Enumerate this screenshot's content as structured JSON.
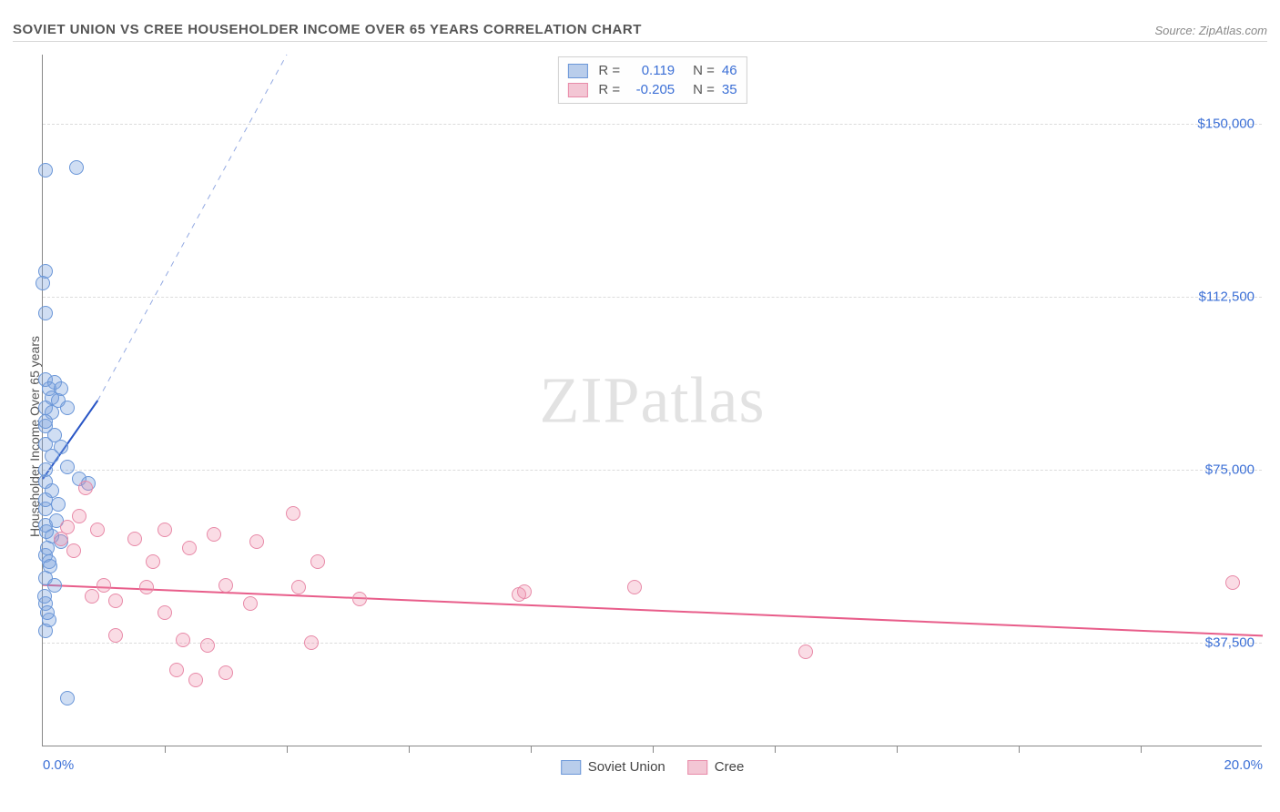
{
  "header": {
    "title": "SOVIET UNION VS CREE HOUSEHOLDER INCOME OVER 65 YEARS CORRELATION CHART",
    "source": "Source: ZipAtlas.com"
  },
  "watermark": {
    "part1": "ZIP",
    "part2": "atlas"
  },
  "chart": {
    "type": "scatter",
    "background_color": "#ffffff",
    "grid_color": "#dcdcdc",
    "axis_color": "#888888",
    "ylabel": "Householder Income Over 65 years",
    "ylabel_fontsize": 14,
    "xlim": [
      0,
      20
    ],
    "ylim": [
      15000,
      165000
    ],
    "xticks_minor": [
      2,
      4,
      6,
      8,
      10,
      12,
      14,
      16,
      18
    ],
    "xticks": [
      {
        "v": 0,
        "label": "0.0%"
      },
      {
        "v": 20,
        "label": "20.0%"
      }
    ],
    "yticks": [
      {
        "v": 37500,
        "label": "$37,500"
      },
      {
        "v": 75000,
        "label": "$75,000"
      },
      {
        "v": 112500,
        "label": "$112,500"
      },
      {
        "v": 150000,
        "label": "$150,000"
      }
    ],
    "series": [
      {
        "name": "Soviet Union",
        "color_fill": "rgba(120,160,220,0.35)",
        "color_stroke": "#6a96d8",
        "swatch_fill": "#b9cdeb",
        "swatch_border": "#6a96d8",
        "R": "0.119",
        "N": "46",
        "points": [
          [
            0.05,
            140000
          ],
          [
            0.55,
            140500
          ],
          [
            0.05,
            118000
          ],
          [
            0.0,
            115500
          ],
          [
            0.05,
            109000
          ],
          [
            0.05,
            94500
          ],
          [
            0.2,
            94000
          ],
          [
            0.1,
            92500
          ],
          [
            0.3,
            92500
          ],
          [
            0.15,
            90500
          ],
          [
            0.25,
            90000
          ],
          [
            0.05,
            88500
          ],
          [
            0.15,
            87500
          ],
          [
            0.05,
            84500
          ],
          [
            0.2,
            82500
          ],
          [
            0.05,
            80500
          ],
          [
            0.3,
            80000
          ],
          [
            0.15,
            78000
          ],
          [
            0.4,
            75500
          ],
          [
            0.05,
            75000
          ],
          [
            0.6,
            73000
          ],
          [
            0.05,
            72500
          ],
          [
            0.75,
            72000
          ],
          [
            0.15,
            70500
          ],
          [
            0.25,
            67500
          ],
          [
            0.05,
            66500
          ],
          [
            0.05,
            63000
          ],
          [
            0.15,
            60500
          ],
          [
            0.3,
            59500
          ],
          [
            0.05,
            56500
          ],
          [
            0.1,
            55000
          ],
          [
            0.05,
            51500
          ],
          [
            0.2,
            50000
          ],
          [
            0.05,
            46000
          ],
          [
            0.1,
            42500
          ],
          [
            0.05,
            40000
          ],
          [
            0.4,
            25500
          ],
          [
            0.05,
            85500
          ],
          [
            0.4,
            88500
          ],
          [
            0.06,
            61500
          ],
          [
            0.05,
            68500
          ],
          [
            0.22,
            64000
          ],
          [
            0.08,
            58000
          ],
          [
            0.12,
            54000
          ],
          [
            0.03,
            47500
          ],
          [
            0.07,
            44000
          ]
        ],
        "regression": {
          "x1": 0.0,
          "y1": 73000,
          "x2": 0.9,
          "y2": 90000,
          "dash_x2": 4.0,
          "dash_y2": 165000,
          "color": "#2a56c6",
          "width": 2
        }
      },
      {
        "name": "Cree",
        "color_fill": "rgba(240,140,170,0.30)",
        "color_stroke": "#e88aa8",
        "swatch_fill": "#f3c6d4",
        "swatch_border": "#e88aa8",
        "R": "-0.205",
        "N": "35",
        "points": [
          [
            0.7,
            71000
          ],
          [
            0.6,
            65000
          ],
          [
            0.4,
            62500
          ],
          [
            0.9,
            62000
          ],
          [
            0.3,
            60000
          ],
          [
            0.5,
            57500
          ],
          [
            1.5,
            60000
          ],
          [
            2.0,
            62000
          ],
          [
            2.4,
            58000
          ],
          [
            1.8,
            55000
          ],
          [
            2.8,
            61000
          ],
          [
            3.5,
            59500
          ],
          [
            4.1,
            65500
          ],
          [
            4.5,
            55000
          ],
          [
            1.0,
            50000
          ],
          [
            1.7,
            49500
          ],
          [
            0.8,
            47500
          ],
          [
            1.2,
            46500
          ],
          [
            2.0,
            44000
          ],
          [
            3.0,
            50000
          ],
          [
            3.4,
            46000
          ],
          [
            4.2,
            49500
          ],
          [
            5.2,
            47000
          ],
          [
            1.2,
            39000
          ],
          [
            2.3,
            38000
          ],
          [
            2.7,
            37000
          ],
          [
            3.0,
            31000
          ],
          [
            2.2,
            31500
          ],
          [
            2.5,
            29500
          ],
          [
            4.4,
            37500
          ],
          [
            7.8,
            48000
          ],
          [
            7.9,
            48500
          ],
          [
            9.7,
            49500
          ],
          [
            12.5,
            35500
          ],
          [
            19.5,
            50500
          ]
        ],
        "regression": {
          "x1": 0.0,
          "y1": 50000,
          "x2": 20.0,
          "y2": 39000,
          "color": "#e85d8a",
          "width": 2
        }
      }
    ],
    "legend_top": {
      "R_label": "R =",
      "N_label": "N ="
    },
    "legend_bottom": [
      {
        "label": "Soviet Union",
        "fill": "#b9cdeb",
        "border": "#6a96d8"
      },
      {
        "label": "Cree",
        "fill": "#f3c6d4",
        "border": "#e88aa8"
      }
    ]
  }
}
